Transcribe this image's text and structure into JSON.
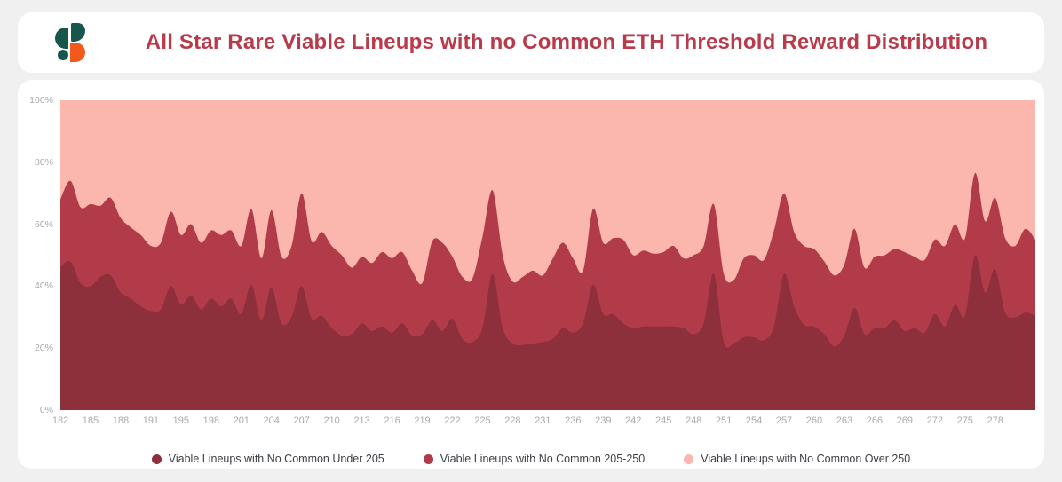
{
  "page": {
    "background": "#f0f0f1",
    "card_background": "#ffffff"
  },
  "header": {
    "title": "All Star Rare Viable Lineups with no Common ETH Threshold Reward Distribution",
    "title_color": "#b83a4b",
    "logo": {
      "name": "sorare-logo",
      "teal": "#17564c",
      "orange": "#f25a1d"
    }
  },
  "chart_data": {
    "type": "area",
    "stacked": true,
    "title": "All Star Rare Viable Lineups with no Common ETH Threshold Reward Distribution",
    "x": [
      182,
      183,
      184,
      185,
      186,
      187,
      188,
      189,
      190,
      191,
      192,
      193,
      195,
      196,
      197,
      198,
      199,
      200,
      201,
      202,
      203,
      204,
      205,
      206,
      207,
      208,
      209,
      210,
      211,
      212,
      213,
      214,
      215,
      216,
      217,
      218,
      219,
      220,
      221,
      222,
      223,
      224,
      225,
      226,
      227,
      228,
      229,
      230,
      231,
      233,
      234,
      236,
      237,
      238,
      239,
      240,
      241,
      242,
      243,
      244,
      245,
      246,
      247,
      248,
      249,
      250,
      251,
      252,
      253,
      254,
      255,
      256,
      257,
      258,
      259,
      260,
      261,
      262,
      263,
      264,
      265,
      266,
      267,
      268,
      269,
      270,
      271,
      272,
      273,
      274,
      275,
      276,
      277,
      278,
      279,
      280,
      281,
      282
    ],
    "x_tick_labels": [
      "182",
      "185",
      "188",
      "191",
      "195",
      "198",
      "201",
      "204",
      "207",
      "210",
      "213",
      "216",
      "219",
      "222",
      "225",
      "228",
      "231",
      "236",
      "239",
      "242",
      "245",
      "248",
      "251",
      "254",
      "257",
      "260",
      "263",
      "266",
      "269",
      "272",
      "275",
      "278"
    ],
    "tick_every": 3,
    "y_ticks": [
      "100%",
      "80%",
      "60%",
      "40%",
      "20%",
      "0%"
    ],
    "ylim": [
      0,
      100
    ],
    "y_unit": "%",
    "grid": false,
    "legend_position": "bottom",
    "axis_text_color": "#a6a9ad",
    "series": [
      {
        "name": "Viable Lineups with No Common Under 205",
        "color": "#8e2f3c",
        "values": [
          46,
          48,
          41,
          40,
          43,
          43.5,
          38,
          36,
          33.5,
          32,
          32.5,
          40,
          34,
          37,
          32.5,
          36,
          33.5,
          36,
          31,
          40.5,
          29,
          39.5,
          28,
          30,
          40,
          29.5,
          30.5,
          26.5,
          24,
          24.5,
          28,
          25.5,
          27,
          25,
          28,
          24,
          24.5,
          29,
          25.5,
          29.5,
          23,
          22,
          26.5,
          44,
          26.5,
          21.5,
          21,
          21.5,
          22,
          23,
          26.5,
          25,
          28,
          40.5,
          31,
          31,
          28,
          26.5,
          27,
          27,
          27,
          27,
          26.5,
          24.5,
          28,
          44,
          22,
          21.5,
          23.5,
          23.5,
          22.5,
          27,
          44,
          33.5,
          27.5,
          27,
          24.5,
          20.5,
          24,
          33,
          24.5,
          26.5,
          26.5,
          29,
          25.5,
          26.5,
          25,
          31,
          27,
          34,
          30.5,
          50,
          38,
          45.5,
          31.5,
          30,
          31.5,
          30.5
        ]
      },
      {
        "name": "Viable Lineups with No Common 205-250",
        "color": "#b23b4a",
        "values": [
          22,
          26,
          24.5,
          26.5,
          23,
          25,
          24,
          23,
          23,
          21,
          21.5,
          24,
          22.5,
          23,
          21.5,
          22,
          23,
          22,
          22,
          24.5,
          20,
          25,
          21.5,
          23,
          30,
          25,
          27,
          26.5,
          26,
          21.5,
          21.5,
          22,
          24,
          24,
          23,
          21,
          16.5,
          25.5,
          28.5,
          20,
          20,
          20.5,
          29.5,
          27,
          23.5,
          20,
          22,
          23.5,
          21.5,
          26,
          27.5,
          24,
          17,
          24.5,
          23,
          24.5,
          27,
          23.5,
          24.5,
          23.5,
          24,
          26,
          22.5,
          25.5,
          25,
          22.5,
          22,
          20.5,
          25.5,
          26.5,
          26,
          31,
          26,
          24,
          25.5,
          25,
          23.5,
          23,
          23,
          25.5,
          21.5,
          23,
          23.5,
          23,
          25.5,
          23,
          23.5,
          24,
          26,
          26,
          25,
          26.5,
          23,
          23,
          24,
          23,
          27,
          24.5
        ]
      },
      {
        "name": "Viable Lineups with No Common Over 250",
        "color": "#fbb6ad",
        "values": [
          32,
          26,
          34.5,
          33.5,
          34,
          31.5,
          38,
          41,
          43.5,
          47,
          46,
          36,
          43.5,
          40,
          46,
          42,
          43.5,
          42,
          47,
          35,
          51,
          35.5,
          50.5,
          47,
          30,
          45.5,
          42.5,
          47,
          50,
          54,
          50.5,
          52.5,
          49,
          51,
          49,
          55,
          59,
          45.5,
          46,
          50.5,
          57,
          57.5,
          44,
          29,
          50,
          58.5,
          57,
          55,
          56.5,
          51,
          46,
          51,
          55,
          35,
          46,
          44.5,
          45,
          50,
          48.5,
          49.5,
          49,
          47,
          51,
          50,
          47,
          33.5,
          56,
          58,
          51,
          50,
          51.5,
          42,
          30,
          42.5,
          47,
          48,
          52,
          56.5,
          53,
          41.5,
          54,
          50.5,
          50,
          48,
          49,
          50.5,
          51.5,
          45,
          47,
          40,
          44.5,
          23.5,
          39,
          31.5,
          44.5,
          47,
          41.5,
          45
        ]
      }
    ]
  },
  "legend": {
    "text_color": "#3b3f46"
  }
}
